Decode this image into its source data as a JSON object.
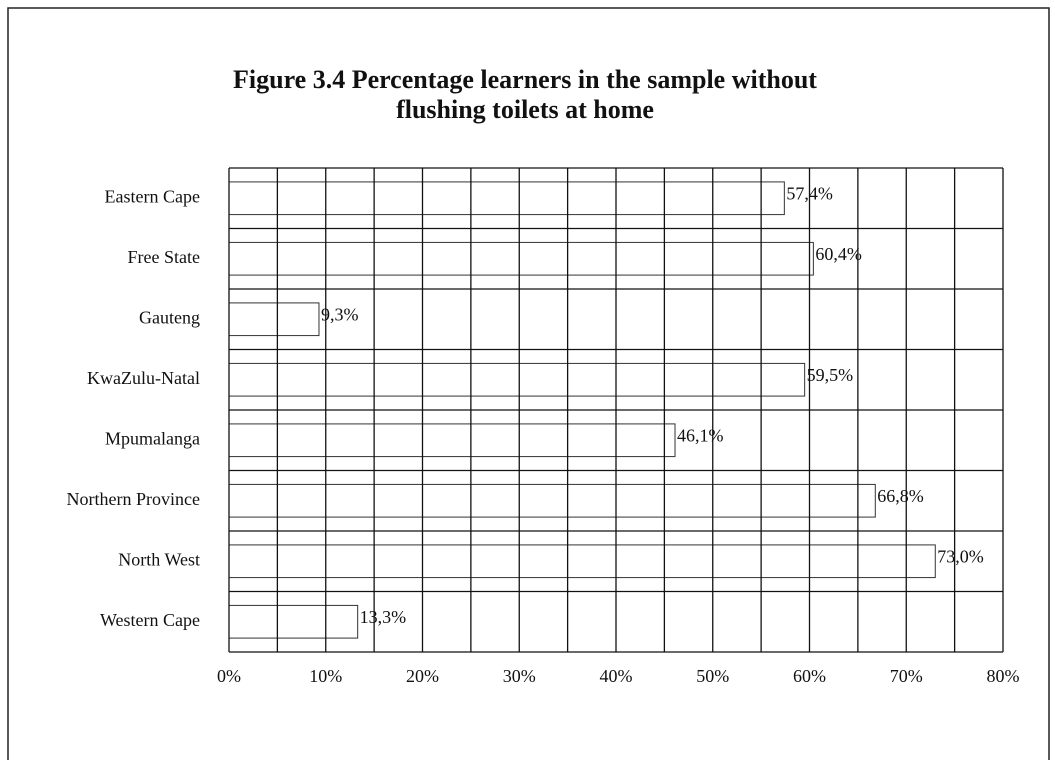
{
  "chart_data": {
    "type": "bar",
    "orientation": "horizontal",
    "title": [
      "Figure 3.4 Percentage learners in the sample without",
      "flushing toilets at home"
    ],
    "categories": [
      "Eastern Cape",
      "Free State",
      "Gauteng",
      "KwaZulu-Natal",
      "Mpumalanga",
      "Northern Province",
      "North West",
      "Western Cape"
    ],
    "values": [
      57.4,
      60.4,
      9.3,
      59.5,
      46.1,
      66.8,
      73.0,
      13.3
    ],
    "value_labels": [
      "57,4%",
      "60,4%",
      "9,3%",
      "59,5%",
      "46,1%",
      "66,8%",
      "73,0%",
      "13,3%"
    ],
    "color": "#ffffff",
    "xlim": [
      0,
      80
    ],
    "xticks": [
      {
        "value": 0,
        "label": "0%"
      },
      {
        "value": 10,
        "label": "10%"
      },
      {
        "value": 20,
        "label": "20%"
      },
      {
        "value": 30,
        "label": "30%"
      },
      {
        "value": 40,
        "label": "40%"
      },
      {
        "value": 50,
        "label": "50%"
      },
      {
        "value": 60,
        "label": "60%"
      },
      {
        "value": 70,
        "label": "70%"
      },
      {
        "value": 80,
        "label": "80%"
      }
    ],
    "minor_xticks": [
      5,
      15,
      25,
      35,
      45,
      55,
      65,
      75
    ],
    "grid": true
  }
}
